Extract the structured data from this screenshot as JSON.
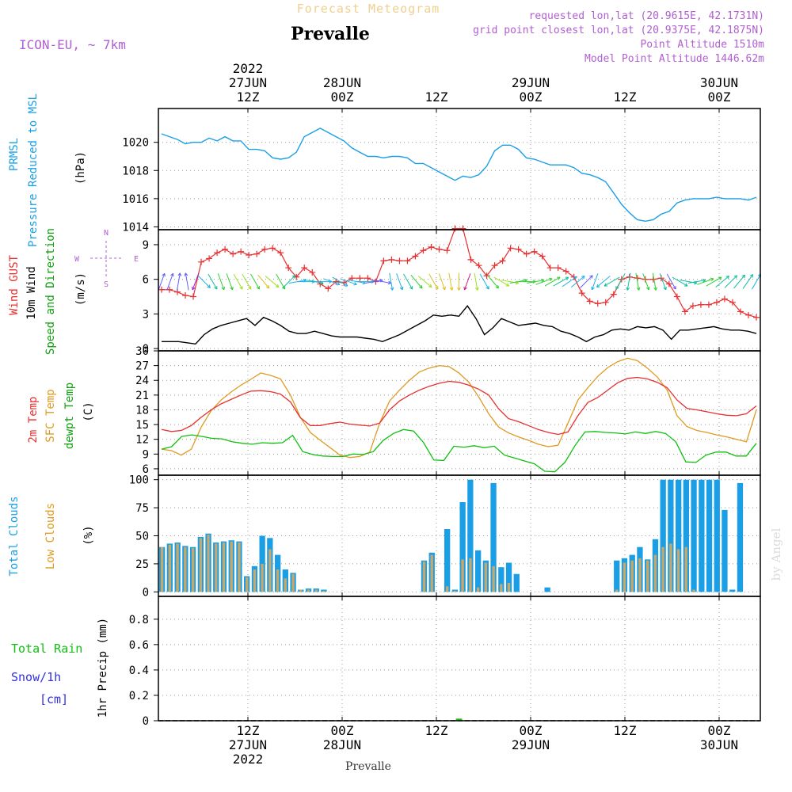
{
  "header": {
    "title": "Forecast Meteogram",
    "location": "Prevalle",
    "model": "ICON-EU, ~ 7km",
    "requested": "requested lon,lat (20.9615E, 42.1731N)",
    "grid_point": "grid point closest lon,lat (20.9375E, 42.1875N)",
    "point_altitude": "Point Altitude 1510m",
    "model_altitude": "Model Point Altitude 1446.62m",
    "footer_location": "Prevalle",
    "watermark": "by Angel"
  },
  "colors": {
    "pressure": "#1a9fe6",
    "gust": "#e83030",
    "wind": "#000000",
    "temp2m": "#e83030",
    "sfc_temp": "#e09a20",
    "dewpt": "#10c010",
    "total_clouds": "#1a9fe6",
    "low_clouds": "#c8a86a",
    "rain": "#10c010",
    "snow": "#3030e0",
    "label_purple": "#b060d0"
  },
  "chart_data": [
    {
      "type": "line",
      "name": "pressure",
      "ylabel_lines": [
        "PRMSL",
        "Pressure Reduced to MSL"
      ],
      "unit": "(hPa)",
      "ylim": [
        1013.8,
        1022.4
      ],
      "yticks": [
        "1014",
        "1016",
        "1018",
        "1020"
      ],
      "ytick_values": [
        1014,
        1016,
        1018,
        1020
      ],
      "grid": true,
      "series": [
        {
          "values": [
            1020.6,
            1020.4,
            1020.2,
            1019.9,
            1020.0,
            1020.0,
            1020.3,
            1020.1,
            1020.4,
            1020.1,
            1020.1,
            1019.5,
            1019.5,
            1019.4,
            1018.9,
            1018.8,
            1018.9,
            1019.3,
            1020.4,
            1020.7,
            1021.0,
            1020.7,
            1020.4,
            1020.1,
            1019.6,
            1019.3,
            1019.0,
            1019.0,
            1018.9,
            1019.0,
            1019.0,
            1018.9,
            1018.5,
            1018.5,
            1018.2,
            1017.9,
            1017.6,
            1017.3,
            1017.6,
            1017.5,
            1017.7,
            1018.3,
            1019.4,
            1019.8,
            1019.8,
            1019.5,
            1018.9,
            1018.8,
            1018.6,
            1018.4,
            1018.4,
            1018.4,
            1018.2,
            1017.8,
            1017.7,
            1017.5,
            1017.2,
            1016.4,
            1015.6,
            1015.0,
            1014.5,
            1014.4,
            1014.5,
            1014.9,
            1015.1,
            1015.7,
            1015.9,
            1016.0,
            1016.0,
            1016.0,
            1016.1,
            1016.0,
            1016.0,
            1016.0,
            1015.9,
            1016.1
          ]
        }
      ]
    },
    {
      "type": "line",
      "name": "wind",
      "ylabel_lines": [
        "Wind GUST",
        "10m Wind",
        "Speed and Direction"
      ],
      "unit": "(m/s)",
      "compass": [
        "N",
        "W",
        "E",
        "S"
      ],
      "ylim": [
        -0.2,
        10.3
      ],
      "yticks": [
        "0",
        "3",
        "6",
        "9"
      ],
      "ytick_values": [
        0,
        3,
        6,
        9
      ],
      "grid": true,
      "series": [
        {
          "name": "gust",
          "values": [
            5.1,
            5.1,
            4.9,
            4.6,
            4.5,
            7.5,
            7.8,
            8.3,
            8.6,
            8.2,
            8.4,
            8.1,
            8.2,
            8.6,
            8.7,
            8.3,
            7.0,
            6.2,
            7.0,
            6.6,
            5.6,
            5.2,
            5.8,
            5.7,
            6.1,
            6.1,
            6.1,
            5.8,
            7.6,
            7.7,
            7.6,
            7.6,
            8.0,
            8.5,
            8.8,
            8.6,
            8.5,
            10.4,
            10.4,
            7.7,
            7.2,
            6.3,
            7.2,
            7.6,
            8.7,
            8.6,
            8.2,
            8.4,
            8.0,
            7.0,
            7.0,
            6.7,
            6.2,
            4.8,
            4.1,
            3.9,
            4.0,
            4.7,
            6.0,
            6.2,
            6.1,
            6.0,
            6.0,
            6.1,
            5.6,
            4.5,
            3.2,
            3.7,
            3.8,
            3.8,
            4.0,
            4.3,
            4.0,
            3.2,
            2.9,
            2.7
          ]
        },
        {
          "name": "wind10m",
          "values": [
            0.6,
            0.6,
            0.6,
            0.5,
            0.4,
            1.2,
            1.7,
            2.0,
            2.2,
            2.4,
            2.6,
            2.0,
            2.7,
            2.4,
            2.0,
            1.5,
            1.3,
            1.3,
            1.5,
            1.3,
            1.1,
            1.0,
            1.0,
            1.0,
            0.9,
            0.8,
            0.6,
            0.9,
            1.2,
            1.6,
            2.0,
            2.4,
            2.9,
            2.8,
            2.9,
            2.8,
            3.7,
            2.6,
            1.2,
            1.8,
            2.6,
            2.3,
            2.0,
            2.1,
            2.2,
            2.0,
            1.9,
            1.5,
            1.3,
            1.0,
            0.6,
            1.0,
            1.2,
            1.6,
            1.7,
            1.6,
            1.9,
            1.8,
            1.9,
            1.6,
            0.8,
            1.6,
            1.6,
            1.7,
            1.8,
            1.9,
            1.7,
            1.6,
            1.6,
            1.5,
            1.3
          ]
        },
        {
          "name": "direction_deg",
          "values": [
            20,
            20,
            10,
            350,
            200,
            135,
            150,
            160,
            160,
            150,
            150,
            150,
            140,
            130,
            150,
            45,
            80,
            90,
            100,
            90,
            110,
            120,
            110,
            100,
            90,
            80,
            100,
            170,
            160,
            150,
            140,
            130,
            150,
            160,
            170,
            180,
            200,
            170,
            150,
            140,
            120,
            100,
            80,
            90,
            80,
            70,
            60,
            60,
            55,
            50,
            45,
            200,
            230,
            240,
            210,
            190,
            170,
            160,
            170,
            160,
            150,
            120,
            100,
            80,
            70,
            60,
            50,
            45,
            40,
            35,
            30
          ]
        }
      ]
    },
    {
      "type": "line",
      "name": "temperature",
      "ylabel_lines": [
        "2m Temp",
        "SFC Temp",
        "dewpt Temp"
      ],
      "unit": "(C)",
      "ylim": [
        4.7,
        30
      ],
      "yticks": [
        "6",
        "9",
        "12",
        "15",
        "18",
        "21",
        "24",
        "27",
        "30"
      ],
      "ytick_values": [
        6,
        9,
        12,
        15,
        18,
        21,
        24,
        27,
        30
      ],
      "grid": true,
      "series": [
        {
          "name": "temp2m",
          "values": [
            14.0,
            13.6,
            13.8,
            14.8,
            16.5,
            18.0,
            19.2,
            20.1,
            21.0,
            21.8,
            21.9,
            21.7,
            21.2,
            19.6,
            16.4,
            14.8,
            14.8,
            15.2,
            15.5,
            15.1,
            14.9,
            14.7,
            15.3,
            18.0,
            19.8,
            21.0,
            22.0,
            22.8,
            23.4,
            23.8,
            23.6,
            23.0,
            22.2,
            21.0,
            18.2,
            16.2,
            15.6,
            14.8,
            14.0,
            13.4,
            13.0,
            13.5,
            16.8,
            19.5,
            20.5,
            22.0,
            23.5,
            24.4,
            24.6,
            24.3,
            23.6,
            22.5,
            20.0,
            18.3,
            18.0,
            17.6,
            17.2,
            16.9,
            16.8,
            17.2,
            18.8
          ]
        },
        {
          "name": "sfc_temp",
          "values": [
            10.0,
            9.7,
            8.8,
            10.0,
            14.5,
            17.8,
            20.0,
            21.6,
            23.0,
            24.2,
            25.5,
            25.0,
            24.3,
            21.0,
            16.5,
            13.4,
            11.8,
            10.3,
            8.8,
            8.3,
            8.5,
            9.4,
            15.3,
            19.8,
            22.0,
            24.0,
            25.7,
            26.5,
            27.0,
            26.8,
            25.5,
            23.6,
            20.6,
            17.2,
            14.5,
            13.3,
            12.5,
            11.8,
            11.0,
            10.5,
            10.8,
            15.3,
            20.0,
            22.5,
            24.8,
            26.6,
            27.8,
            28.5,
            28.0,
            26.5,
            24.7,
            22.0,
            16.8,
            14.6,
            13.8,
            13.4,
            12.9,
            12.5,
            12.0,
            11.5,
            18.0
          ]
        },
        {
          "name": "dewpt",
          "values": [
            10.0,
            10.5,
            12.6,
            12.9,
            12.6,
            12.2,
            12.1,
            11.5,
            11.2,
            11.0,
            11.3,
            11.2,
            11.3,
            12.8,
            9.5,
            8.9,
            8.6,
            8.5,
            8.5,
            9.0,
            8.9,
            9.5,
            11.8,
            13.2,
            14.0,
            13.7,
            11.3,
            7.8,
            7.7,
            10.6,
            10.4,
            10.7,
            10.3,
            10.6,
            8.8,
            8.2,
            7.6,
            7.0,
            5.5,
            5.4,
            7.3,
            10.7,
            13.5,
            13.6,
            13.4,
            13.3,
            13.1,
            13.5,
            13.2,
            13.6,
            13.2,
            11.5,
            7.4,
            7.3,
            8.8,
            9.4,
            9.4,
            8.6,
            8.6,
            11.2
          ]
        }
      ]
    },
    {
      "type": "bar",
      "name": "clouds",
      "ylabel_lines": [
        "Total Clouds",
        "Low Clouds"
      ],
      "unit": "(%)",
      "ylim": [
        -4,
        104
      ],
      "yticks": [
        "0",
        "25",
        "50",
        "75",
        "100"
      ],
      "ytick_values": [
        0,
        25,
        50,
        75,
        100
      ],
      "grid": true,
      "series": [
        {
          "name": "total",
          "values": [
            40,
            43,
            44,
            41,
            40,
            49,
            52,
            44,
            45,
            46,
            45,
            14,
            23,
            50,
            48,
            33,
            20,
            17,
            2,
            3,
            3,
            2,
            0,
            0,
            0,
            0,
            0,
            0,
            0,
            0,
            0,
            0,
            0,
            0,
            28,
            35,
            0,
            56,
            2,
            80,
            100,
            37,
            28,
            97,
            22,
            26,
            16,
            0,
            0,
            0,
            4,
            0,
            0,
            0,
            0,
            0,
            0,
            0,
            0,
            28,
            30,
            33,
            40,
            29,
            47,
            100,
            100,
            100,
            100,
            100,
            100,
            100,
            100,
            73,
            2,
            97,
            0,
            0
          ]
        },
        {
          "name": "low",
          "values": [
            40,
            42,
            43,
            40,
            39,
            48,
            51,
            43,
            44,
            45,
            44,
            13,
            20,
            25,
            38,
            20,
            12,
            16,
            2,
            2,
            2,
            1,
            0,
            0,
            0,
            0,
            0,
            0,
            0,
            0,
            0,
            0,
            0,
            0,
            27,
            33,
            0,
            5,
            1,
            29,
            30,
            4,
            26,
            23,
            7,
            8,
            0,
            0,
            0,
            0,
            0,
            0,
            0,
            0,
            0,
            0,
            0,
            0,
            0,
            2,
            26,
            28,
            30,
            28,
            33,
            40,
            43,
            38,
            40,
            2,
            0,
            0,
            0,
            0,
            0,
            0,
            0
          ]
        }
      ]
    },
    {
      "type": "bar",
      "name": "precip",
      "ylabel_lines": [
        "Total  Rain",
        "Snow/1h",
        "[cm]"
      ],
      "unit": "1hr Precip (mm)",
      "ylim": [
        0,
        0.98
      ],
      "yticks": [
        "0",
        "0.2",
        "0.4",
        "0.6",
        "0.8"
      ],
      "ytick_values": [
        0,
        0.2,
        0.4,
        0.6,
        0.8
      ],
      "grid": true,
      "series": [
        {
          "name": "rain",
          "values": [
            0,
            0,
            0,
            0,
            0,
            0,
            0,
            0,
            0,
            0,
            0,
            0,
            0,
            0,
            0,
            0,
            0,
            0,
            0,
            0,
            0,
            0,
            0,
            0,
            0,
            0,
            0,
            0,
            0,
            0,
            0,
            0,
            0,
            0,
            0,
            0,
            0,
            0,
            0.01,
            0,
            0,
            0,
            0,
            0,
            0,
            0,
            0,
            0,
            0,
            0,
            0,
            0,
            0,
            0,
            0,
            0,
            0,
            0,
            0,
            0,
            0,
            0,
            0,
            0,
            0,
            0,
            0,
            0,
            0,
            0,
            0,
            0,
            0,
            0,
            0,
            0,
            0
          ]
        }
      ]
    }
  ],
  "time_axis": {
    "top_year": "2022",
    "labels": [
      {
        "line1": "27JUN",
        "line2": "12Z"
      },
      {
        "line1": "28JUN",
        "line2": "00Z"
      },
      {
        "line1": "",
        "line2": "12Z"
      },
      {
        "line1": "29JUN",
        "line2": "00Z"
      },
      {
        "line1": "",
        "line2": "12Z"
      },
      {
        "line1": "30JUN",
        "line2": "00Z"
      }
    ],
    "bottom_labels": [
      {
        "line1": "12Z",
        "line2": "27JUN",
        "line3": "2022"
      },
      {
        "line1": "00Z",
        "line2": "28JUN",
        "line3": ""
      },
      {
        "line1": "12Z",
        "line2": "",
        "line3": ""
      },
      {
        "line1": "00Z",
        "line2": "29JUN",
        "line3": ""
      },
      {
        "line1": "12Z",
        "line2": "",
        "line3": ""
      },
      {
        "line1": "00Z",
        "line2": "30JUN",
        "line3": ""
      }
    ]
  }
}
